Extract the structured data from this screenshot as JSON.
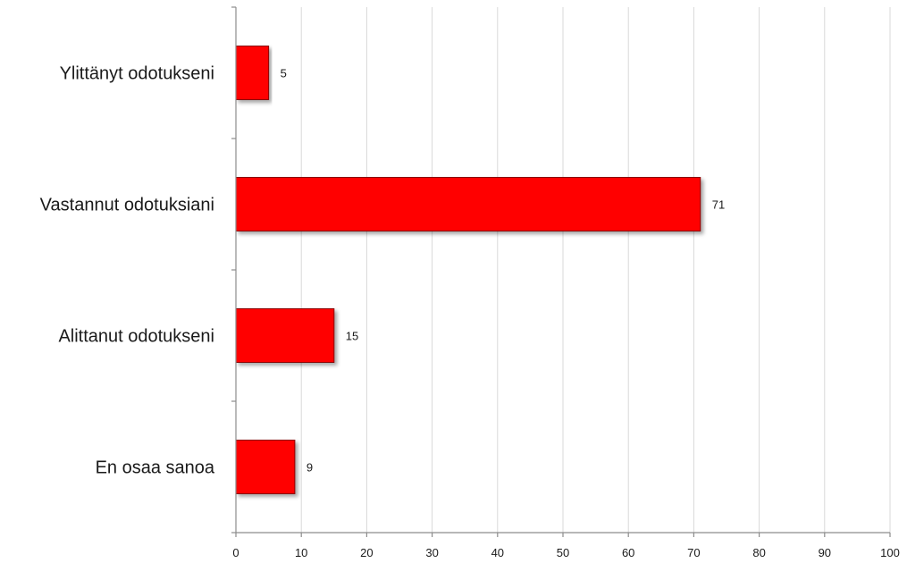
{
  "chart_data": {
    "type": "bar",
    "orientation": "horizontal",
    "categories": [
      "Ylittänyt odotukseni",
      "Vastannut odotuksiani",
      "Alittanut odotukseni",
      "En osaa sanoa"
    ],
    "values": [
      5,
      71,
      15,
      9
    ],
    "data_labels": [
      "5",
      "71",
      "15",
      "9"
    ],
    "x_ticks": [
      "0",
      "10",
      "20",
      "30",
      "40",
      "50",
      "60",
      "70",
      "80",
      "90",
      "100"
    ],
    "xlim": [
      0,
      100
    ],
    "grid": true,
    "legend": "none",
    "bar_color": "#ff0000",
    "title": "",
    "xlabel": "",
    "ylabel": ""
  }
}
